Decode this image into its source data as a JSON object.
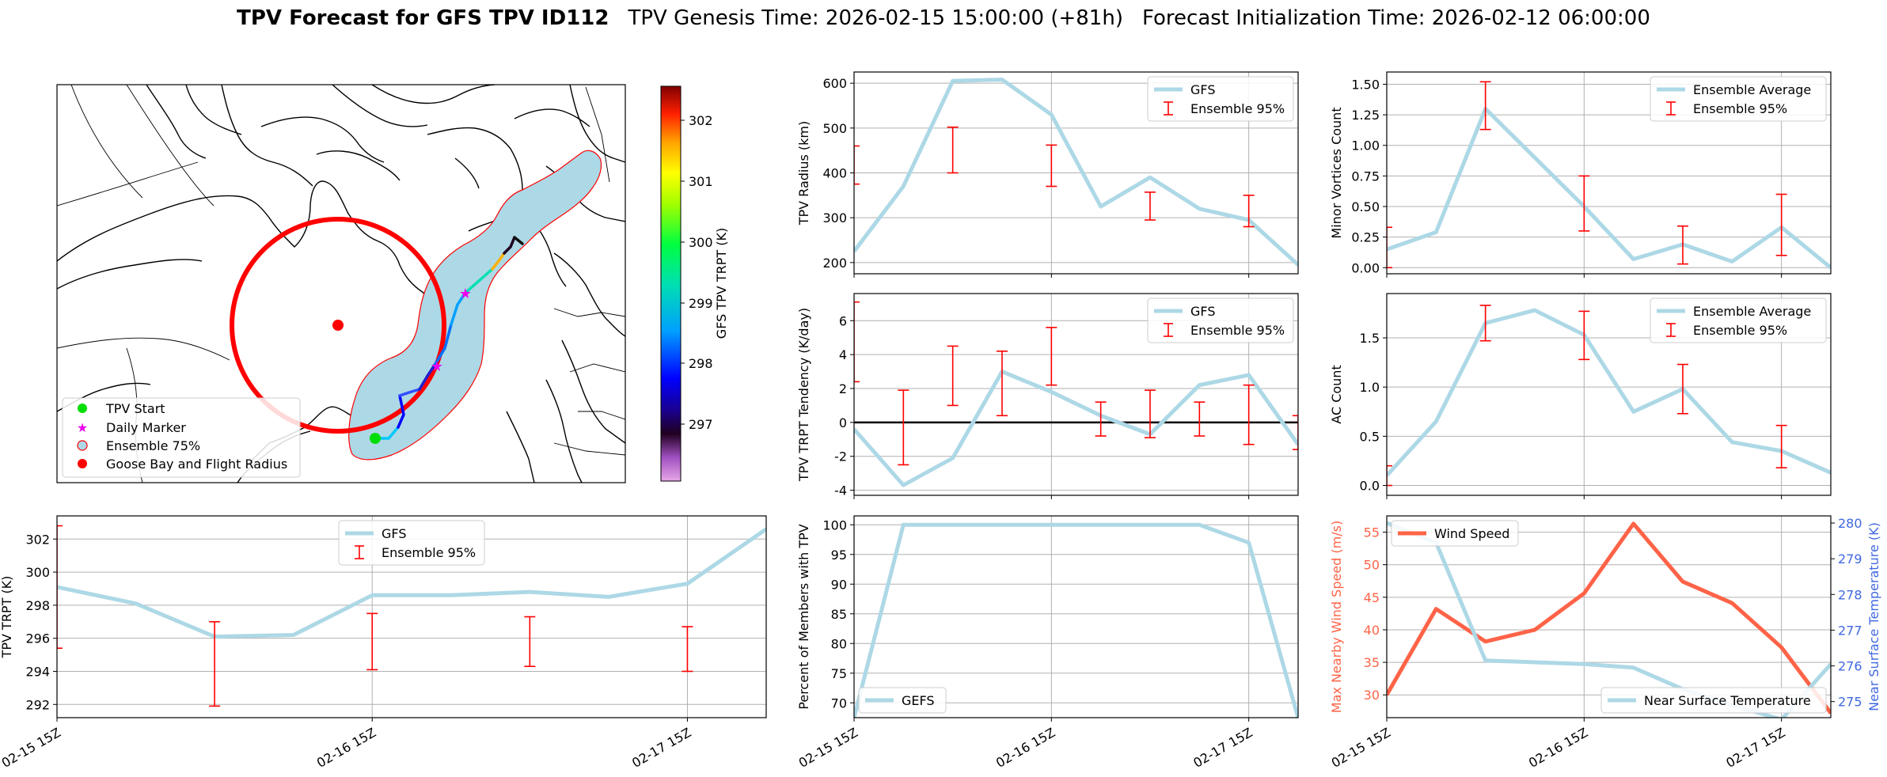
{
  "header": {
    "title_bold": "TPV Forecast for GFS TPV ID112",
    "genesis": "TPV Genesis Time: 2026-02-15 15:00:00 (+81h)",
    "init": "Forecast Initialization Time: 2026-02-12 06:00:00"
  },
  "colors": {
    "gfs_line": "#add8e6",
    "error_bar": "#ff0000",
    "wind_line": "#ff6347",
    "temp_axis": "#4169e1",
    "track_start": "#00dd00",
    "daily_marker": "#ee00ee",
    "ensemble_fill": "#add8e6",
    "goose_bay": "#ff0000"
  },
  "map": {
    "colorbar_label": "GFS TPV TRPT (K)",
    "colorbar_ticks": [
      "302",
      "301",
      "300",
      "299",
      "298",
      "297"
    ],
    "legend": [
      {
        "label": "TPV Start",
        "marker": "green-dot"
      },
      {
        "label": "Daily Marker",
        "marker": "magenta-star"
      },
      {
        "label": "Ensemble 75%",
        "marker": "blue-circle"
      },
      {
        "label": "Goose Bay and Flight Radius",
        "marker": "red-dot"
      }
    ]
  },
  "chart_data": [
    {
      "id": "trpt",
      "type": "line",
      "ylabel": "TPV TRPT (K)",
      "xlim": [
        0,
        2.25
      ],
      "ylim": [
        291.2,
        303.4
      ],
      "yticks": [
        292,
        294,
        296,
        298,
        300,
        302
      ],
      "xticks": [
        0,
        1,
        2
      ],
      "xticklabels": [
        "02-15 15Z",
        "02-16 15Z",
        "02-17 15Z"
      ],
      "legend": "top-center",
      "series": [
        {
          "name": "GFS",
          "x": [
            0,
            0.25,
            0.5,
            0.75,
            1.0,
            1.25,
            1.5,
            1.75,
            2.0,
            2.25
          ],
          "values": [
            299.1,
            298.1,
            296.1,
            296.2,
            298.6,
            298.6,
            298.8,
            298.5,
            299.3,
            302.6
          ]
        }
      ],
      "errorbars": {
        "name": "Ensemble 95%",
        "x": [
          0,
          0.5,
          1.0,
          1.5,
          2.0
        ],
        "low": [
          295.4,
          291.9,
          294.1,
          294.3,
          294.0
        ],
        "high": [
          302.8,
          297.0,
          297.5,
          297.3,
          296.7
        ]
      }
    },
    {
      "id": "radius",
      "type": "line",
      "ylabel": "TPV Radius (km)",
      "xlim": [
        0,
        2.25
      ],
      "ylim": [
        175,
        625
      ],
      "yticks": [
        200,
        300,
        400,
        500,
        600
      ],
      "xticks": [
        0,
        1,
        2
      ],
      "xticklabels": [],
      "legend": "top-right",
      "series": [
        {
          "name": "GFS",
          "x": [
            0,
            0.25,
            0.5,
            0.75,
            1.0,
            1.25,
            1.5,
            1.75,
            2.0,
            2.25
          ],
          "values": [
            225,
            370,
            605,
            608,
            530,
            325,
            390,
            320,
            295,
            195
          ]
        }
      ],
      "errorbars": {
        "name": "Ensemble 95%",
        "x": [
          0,
          0.5,
          1.0,
          1.5,
          2.0
        ],
        "low": [
          375,
          400,
          370,
          295,
          280
        ],
        "high": [
          460,
          502,
          462,
          357,
          350
        ]
      }
    },
    {
      "id": "tendency",
      "type": "line",
      "ylabel": "TPV TRPT Tendency (K/day)",
      "xlim": [
        0,
        2.25
      ],
      "ylim": [
        -4.3,
        7.6
      ],
      "yticks": [
        -4,
        -2,
        0,
        2,
        4,
        6
      ],
      "xticks": [
        0,
        1,
        2
      ],
      "xticklabels": [],
      "legend": "top-right",
      "zero_line": true,
      "series": [
        {
          "name": "GFS",
          "x": [
            0,
            0.25,
            0.5,
            0.75,
            1.0,
            1.25,
            1.5,
            1.75,
            2.0,
            2.25
          ],
          "values": [
            -0.4,
            -3.7,
            -2.1,
            3.0,
            1.8,
            0.4,
            -0.7,
            2.2,
            2.8,
            -1.3
          ]
        }
      ],
      "errorbars": {
        "name": "Ensemble 95%",
        "x": [
          0,
          0.25,
          0.5,
          0.75,
          1.0,
          1.25,
          1.5,
          1.75,
          2.0,
          2.25
        ],
        "low": [
          2.4,
          -2.5,
          1.0,
          0.4,
          2.2,
          -0.8,
          -0.9,
          -0.8,
          -1.3,
          -1.6
        ],
        "high": [
          7.1,
          1.9,
          4.5,
          4.2,
          5.6,
          1.2,
          1.9,
          1.2,
          2.2,
          0.4
        ]
      }
    },
    {
      "id": "members",
      "type": "line",
      "ylabel": "Percent of Members with TPV",
      "xlim": [
        0,
        2.25
      ],
      "ylim": [
        67.5,
        101.5
      ],
      "yticks": [
        70,
        75,
        80,
        85,
        90,
        95,
        100
      ],
      "xticks": [
        0,
        1,
        2
      ],
      "xticklabels": [
        "02-15 15Z",
        "02-16 15Z",
        "02-17 15Z"
      ],
      "legend": "bottom-left",
      "series": [
        {
          "name": "GEFS",
          "x": [
            0,
            0.25,
            0.5,
            0.75,
            1.0,
            1.25,
            1.5,
            1.75,
            2.0,
            2.25
          ],
          "values": [
            67.5,
            100,
            100,
            100,
            100,
            100,
            100,
            100,
            97,
            67.5
          ]
        }
      ]
    },
    {
      "id": "minor",
      "type": "line",
      "ylabel": "Minor Vortices Count",
      "xlim": [
        0,
        2.25
      ],
      "ylim": [
        -0.05,
        1.6
      ],
      "yticks": [
        0.0,
        0.25,
        0.5,
        0.75,
        1.0,
        1.25,
        1.5
      ],
      "yticklabels": [
        "0.00",
        "0.25",
        "0.50",
        "0.75",
        "1.00",
        "1.25",
        "1.50"
      ],
      "xticks": [
        0,
        1,
        2
      ],
      "xticklabels": [],
      "legend": "top-right",
      "series": [
        {
          "name": "Ensemble Average",
          "x": [
            0,
            0.25,
            0.5,
            0.75,
            1.0,
            1.25,
            1.5,
            1.75,
            2.0,
            2.25
          ],
          "values": [
            0.15,
            0.29,
            1.3,
            0.9,
            0.5,
            0.07,
            0.19,
            0.05,
            0.33,
            0.0
          ]
        }
      ],
      "errorbars": {
        "name": "Ensemble 95%",
        "x": [
          0,
          0.5,
          1.0,
          1.5,
          2.0
        ],
        "low": [
          0.0,
          1.13,
          0.3,
          0.03,
          0.1
        ],
        "high": [
          0.33,
          1.52,
          0.75,
          0.34,
          0.6
        ]
      }
    },
    {
      "id": "ac",
      "type": "line",
      "ylabel": "AC Count",
      "xlim": [
        0,
        2.25
      ],
      "ylim": [
        -0.1,
        1.95
      ],
      "yticks": [
        0.0,
        0.5,
        1.0,
        1.5
      ],
      "yticklabels": [
        "0.0",
        "0.5",
        "1.0",
        "1.5"
      ],
      "xticks": [
        0,
        1,
        2
      ],
      "xticklabels": [],
      "legend": "top-right",
      "series": [
        {
          "name": "Ensemble Average",
          "x": [
            0,
            0.25,
            0.5,
            0.75,
            1.0,
            1.25,
            1.5,
            1.75,
            2.0,
            2.25
          ],
          "values": [
            0.1,
            0.65,
            1.65,
            1.78,
            1.53,
            0.75,
            0.98,
            0.44,
            0.35,
            0.13
          ]
        }
      ],
      "errorbars": {
        "name": "Ensemble 95%",
        "x": [
          0,
          0.5,
          1.0,
          1.5,
          2.0
        ],
        "low": [
          0.0,
          1.47,
          1.28,
          0.73,
          0.18
        ],
        "high": [
          0.2,
          1.83,
          1.77,
          1.23,
          0.61
        ]
      }
    },
    {
      "id": "wind",
      "type": "line",
      "ylabel": "Max Nearby Wind Speed (m/s)",
      "ylabel2": "Near Surface Temperature (K)",
      "xlim": [
        0,
        2.25
      ],
      "ylim": [
        26.5,
        57.5
      ],
      "ylim2": [
        274.55,
        280.2
      ],
      "yticks": [
        30,
        35,
        40,
        45,
        50,
        55
      ],
      "yticks2": [
        275,
        276,
        277,
        278,
        279,
        280
      ],
      "xticks": [
        0,
        1,
        2
      ],
      "xticklabels": [
        "02-15 15Z",
        "02-16 15Z",
        "02-17 15Z"
      ],
      "series": [
        {
          "name": "Wind Speed",
          "axis": "left",
          "x": [
            0,
            0.25,
            0.5,
            0.75,
            1.0,
            1.25,
            1.5,
            1.75,
            2.0,
            2.25
          ],
          "values": [
            30,
            43.2,
            38.2,
            40,
            45.6,
            56.3,
            47.4,
            44.1,
            37.3,
            27.2
          ]
        },
        {
          "name": "Near Surface Temperature",
          "axis": "right",
          "x": [
            0,
            0.25,
            0.5,
            0.75,
            1.0,
            1.25,
            1.5,
            1.75,
            2.0,
            2.25
          ],
          "values": [
            280.0,
            279.45,
            276.15,
            276.1,
            276.05,
            275.95,
            275.35,
            274.9,
            274.5,
            276.05
          ]
        }
      ]
    }
  ]
}
